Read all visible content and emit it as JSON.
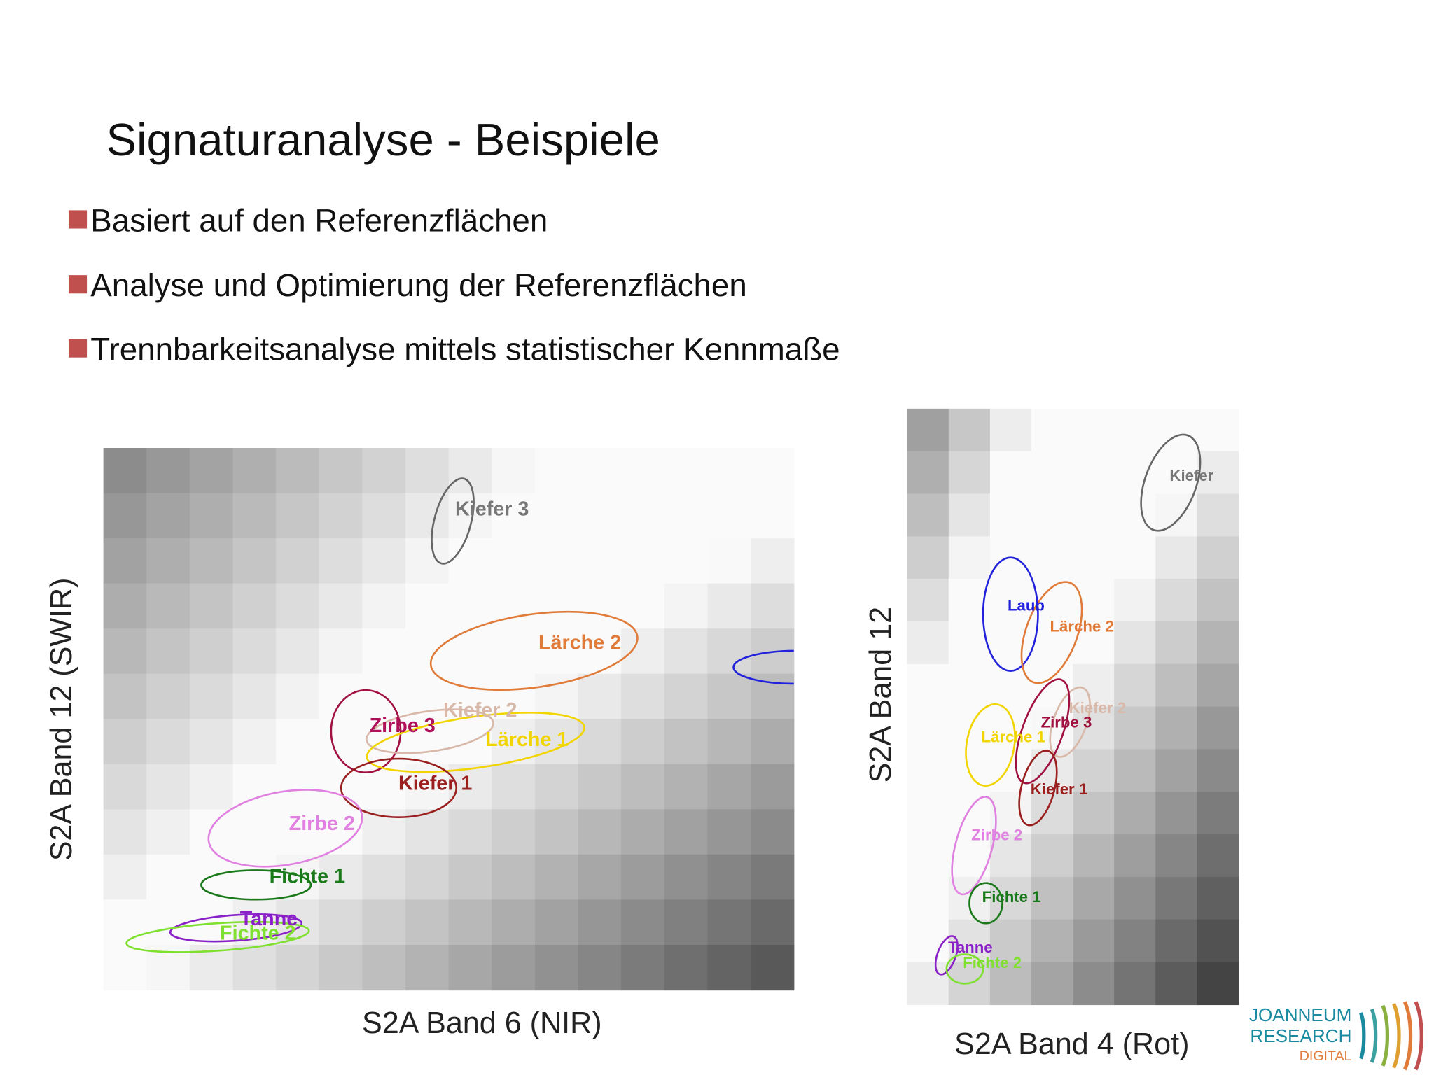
{
  "header": {
    "title": "Signaturanalyse - Beispiele"
  },
  "bullets": [
    "Basiert auf den Referenzflächen",
    "Analyse und Optimierung der Referenzflächen",
    "Trennbarkeitsanalyse mittels statistischer Kennmaße"
  ],
  "plots": [
    {
      "y_label": "S2A Band 12 (SWIR)",
      "x_label": "S2A Band 6 (NIR)",
      "labels": [
        "Kiefer 3",
        "Lärche 2",
        "Kiefer 2",
        "Zirbe 3",
        "Lärche 1",
        "Kiefer 1",
        "Zirbe 2",
        "Fichte 1",
        "Tanne",
        "Fichte 2"
      ]
    },
    {
      "y_label": "S2A Band 12",
      "x_label": "S2A Band 4 (Rot)",
      "labels": [
        "Kiefer",
        "Laub",
        "Lärche 2",
        "Kiefer 2",
        "Zirbe 3",
        "Lärche 1",
        "Kiefer 1",
        "Zirbe 2",
        "Fichte 1",
        "Tanne",
        "Fichte 2"
      ]
    }
  ],
  "logo": {
    "line1": "JOANNEUM",
    "line2": "RESEARCH",
    "line3": "DIGITAL"
  }
}
